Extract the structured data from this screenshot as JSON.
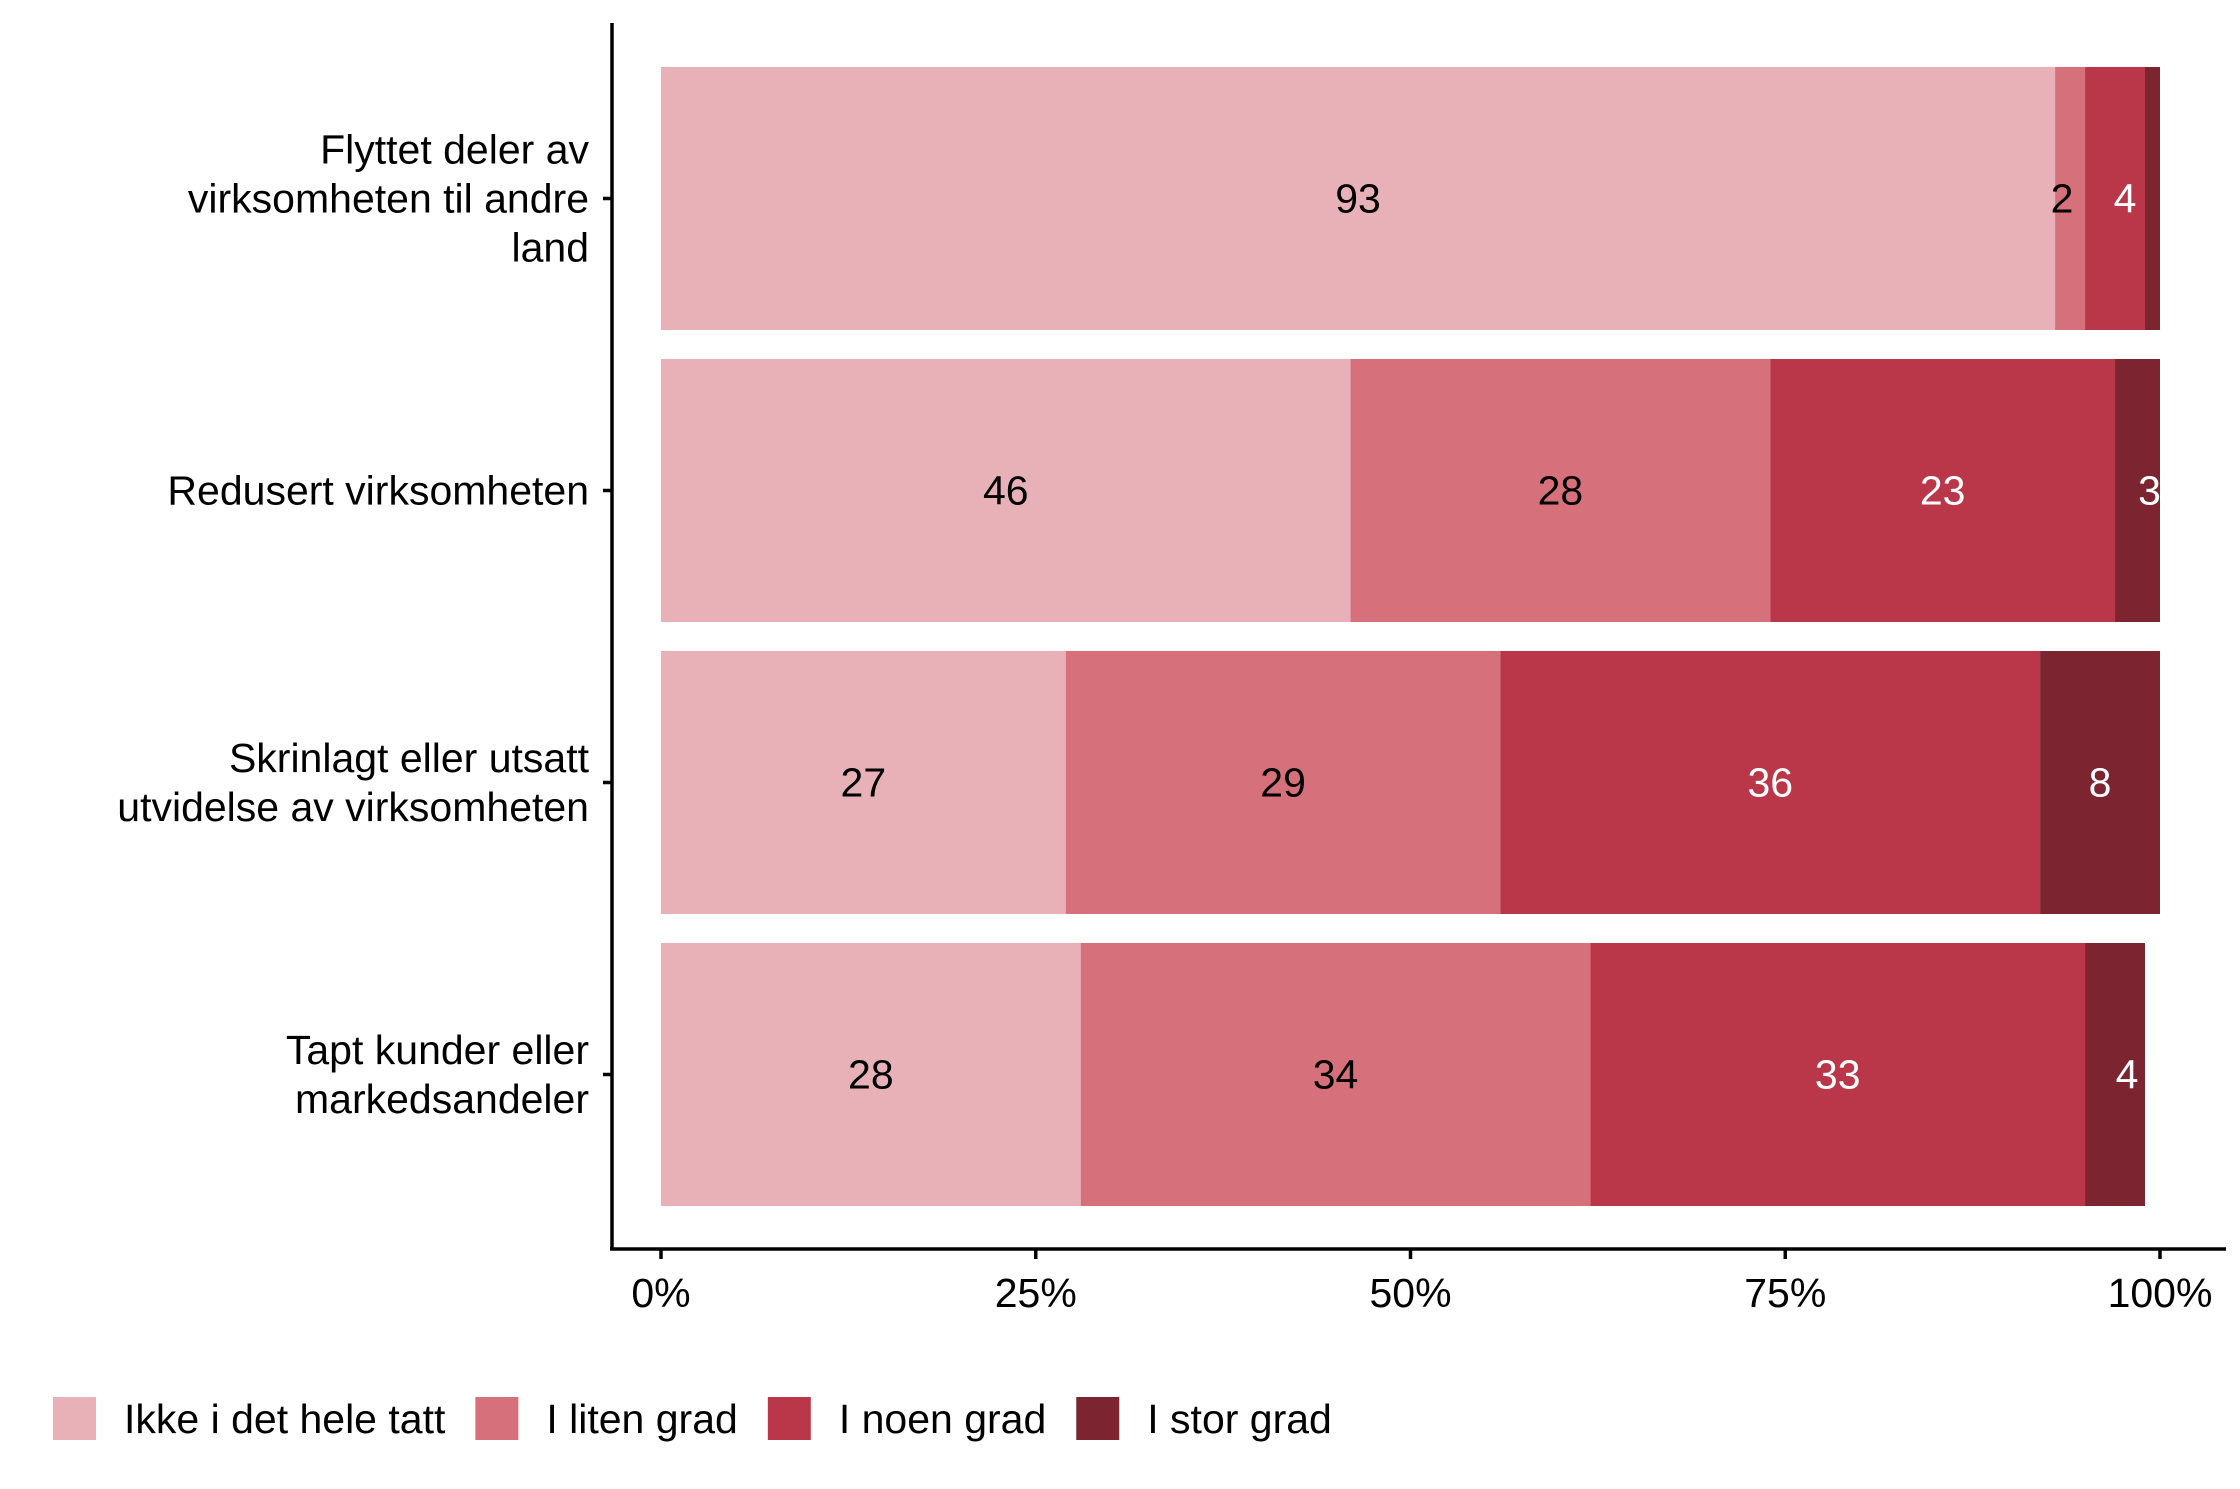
{
  "chart_data": {
    "type": "bar",
    "orientation": "horizontal",
    "stacked": true,
    "title": "",
    "xlabel": "",
    "ylabel": "",
    "xlim": [
      0,
      100
    ],
    "x_ticks": [
      "0%",
      "25%",
      "50%",
      "75%",
      "100%"
    ],
    "categories": [
      [
        "Flyttet deler av",
        "virksomheten til andre",
        "land"
      ],
      [
        "Redusert virksomheten"
      ],
      [
        "Skrinlagt eller utsatt",
        "utvidelse av virksomheten"
      ],
      [
        "Tapt kunder eller",
        "markedsandeler"
      ]
    ],
    "series": [
      {
        "name": "Ikke i det hele tatt",
        "color": "#E8B1B7",
        "label_color": "#000000",
        "values": [
          93,
          46,
          27,
          28
        ],
        "labels": [
          "93",
          "46",
          "27",
          "28"
        ]
      },
      {
        "name": "I liten grad",
        "color": "#D6717C",
        "label_color": "#000000",
        "values": [
          2,
          28,
          29,
          34
        ],
        "labels": [
          "2",
          "28",
          "29",
          "34"
        ]
      },
      {
        "name": "I noen grad",
        "color": "#BA3749",
        "label_color": "#FFFFFF",
        "values": [
          4,
          23,
          36,
          33
        ],
        "labels": [
          "4",
          "23",
          "36",
          "33"
        ]
      },
      {
        "name": "I stor grad",
        "color": "#7C2530",
        "label_color": "#FFFFFF",
        "values": [
          1,
          3,
          8,
          4
        ],
        "labels": [
          "",
          "3",
          "8",
          "4"
        ]
      }
    ],
    "legend_position": "bottom",
    "grid": false
  }
}
